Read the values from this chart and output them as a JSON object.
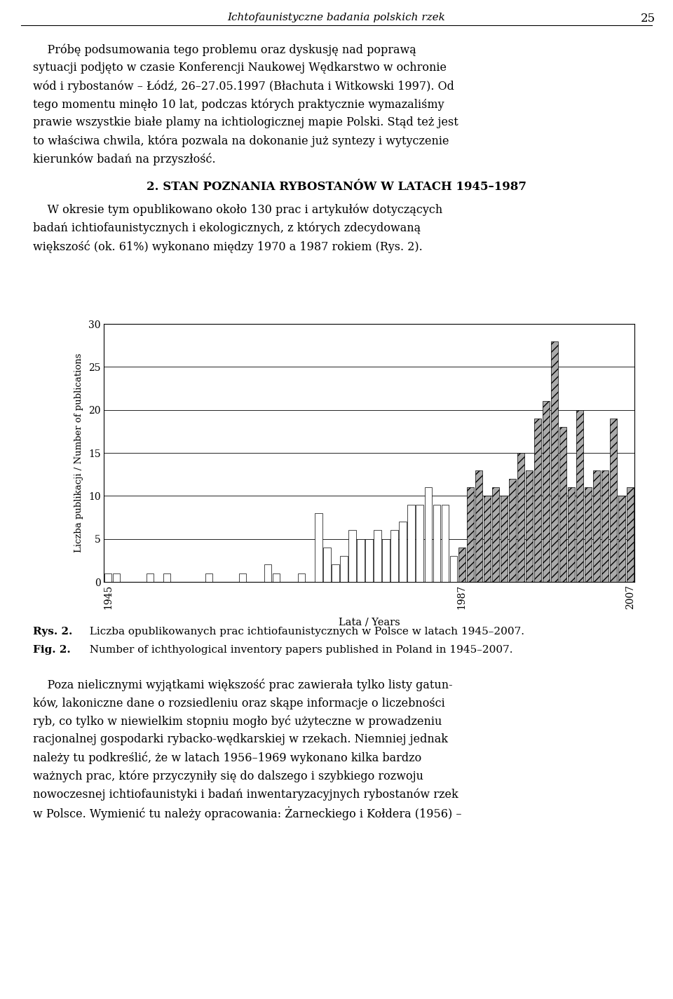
{
  "years": [
    1945,
    1946,
    1947,
    1948,
    1949,
    1950,
    1951,
    1952,
    1953,
    1954,
    1955,
    1956,
    1957,
    1958,
    1959,
    1960,
    1961,
    1962,
    1963,
    1964,
    1965,
    1966,
    1967,
    1968,
    1969,
    1970,
    1971,
    1972,
    1973,
    1974,
    1975,
    1976,
    1977,
    1978,
    1979,
    1980,
    1981,
    1982,
    1983,
    1984,
    1985,
    1986,
    1987,
    1988,
    1989,
    1990,
    1991,
    1992,
    1993,
    1994,
    1995,
    1996,
    1997,
    1998,
    1999,
    2000,
    2001,
    2002,
    2003,
    2004,
    2005,
    2006,
    2007
  ],
  "values": [
    1,
    1,
    0,
    0,
    0,
    1,
    0,
    1,
    0,
    0,
    0,
    0,
    1,
    0,
    0,
    0,
    1,
    0,
    0,
    2,
    1,
    0,
    0,
    1,
    0,
    8,
    4,
    2,
    3,
    6,
    5,
    5,
    6,
    5,
    6,
    7,
    9,
    9,
    11,
    9,
    9,
    3,
    4,
    11,
    13,
    10,
    11,
    10,
    12,
    15,
    13,
    19,
    21,
    28,
    18,
    11,
    20,
    11,
    13,
    13,
    19,
    10,
    11
  ],
  "threshold_year": 1987,
  "bar_color_light": "#ffffff",
  "bar_color_dark": "#aaaaaa",
  "bar_edge_color": "#000000",
  "xlabel": "Lata / Years",
  "ylabel": "Liczba publikacji / Number of publications",
  "yticks": [
    0,
    5,
    10,
    15,
    20,
    25,
    30
  ],
  "ylim": [
    0,
    30
  ],
  "xtick_positions": [
    1945,
    1987,
    2007
  ],
  "xtick_labels": [
    "1945",
    "1987",
    "2007"
  ],
  "header_title": "Ichtofaunistyczne badania polskich rzek",
  "header_page": "25",
  "section_title": "2. STAN POZNANIA RYBOSTАNÓW W LATACH 1945–1987",
  "section_title2": "2. STAN POZNANIA RYBOSTANÓW W LATACH 1945–1987",
  "para1_lines": [
    "    Próbę podsumowania tego problemu oraz dyskusję nad poprawą",
    "sytuacji podjęto w czasie Konferencji Naukowej Wędkarstwo w ochronie",
    "wód i rybostanów – Łódź, 26–27.05.1997 (Błachuta i Witkowski 1997). Od",
    "tego momentu minęło 10 lat, podczas których praktycznie wymazaliśmy",
    "prawie wszystkie białe plamy na ichtiologicznej mapie Polski. Stąd też jest",
    "to właściwa chwila, która pozwala na dokonanie już syntezy i wytyczenie",
    "kierunków badań na przyszłość."
  ],
  "para2_lines": [
    "    W okresie tym opublikowano około 130 prac i artykułów dotyczących",
    "badań ichtiofaunistycznych i ekologicznych, z których zdecydowaną",
    "większość (ok. 61%) wykonano między 1970 a 1987 rokiem (Rys. 2)."
  ],
  "caption1_bold": "Rys. 2.",
  "caption1_text": "  Liczba opublikowanych prac ichtiofaunistycznych w Polsce w latach 1945–2007.",
  "caption2_bold": "Fig. 2.",
  "caption2_text": "  Number of ichthyological inventory papers published in Poland in 1945–2007.",
  "para3_lines": [
    "    Poza nielicznymi wyjątkami większość prac zawierała tylko listy gatun-",
    "ków, lakoniczne dane o rozsiedleniu oraz skąpe informacje o liczebności",
    "ryb, co tylko w niewielkim stopniu mogło być użyteczne w prowadzeniu",
    "racjonalnej gospodarki rybacko-wędkarskiej w rzekach. Niemniej jednak",
    "należy tu podkreślić, że w latach 1956–1969 wykonano kilka bardzo",
    "ważnych prac, które przyczyniły się do dalszego i szybkiego rozwoju",
    "nowoczesnej ichtiofaunistyki i badań inwentaryzacyjnych rybostanów rzek",
    "w Polsce. Wymienić tu należy opracowania: Żarneckiego i Kołdera (1956) –"
  ],
  "fig_width": 9.6,
  "fig_height": 14.25,
  "dpi": 100
}
